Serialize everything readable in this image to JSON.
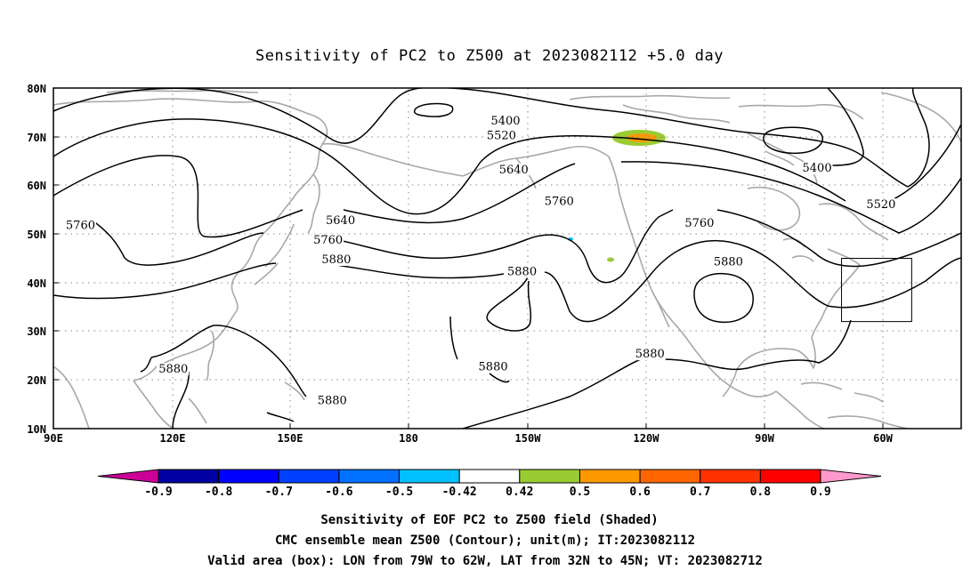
{
  "title": "Sensitivity of PC2 to Z500 at 2023082112 +5.0 day",
  "map": {
    "lat_ticks": [
      "80N",
      "70N",
      "60N",
      "50N",
      "40N",
      "30N",
      "20N",
      "10N"
    ],
    "lon_ticks": [
      "90E",
      "120E",
      "150E",
      "180",
      "150W",
      "120W",
      "90W",
      "60W"
    ],
    "lon_range": [
      90,
      310
    ],
    "lat_range": [
      10,
      80
    ],
    "contour_labels": [
      {
        "text": "5400",
        "lon": 196,
        "lat": 72.5
      },
      {
        "text": "5520",
        "lon": 195,
        "lat": 69.5
      },
      {
        "text": "5400",
        "lon": 271.5,
        "lat": 62.8
      },
      {
        "text": "5520",
        "lon": 287,
        "lat": 55.3
      },
      {
        "text": "5640",
        "lon": 198,
        "lat": 62.5
      },
      {
        "text": "5640",
        "lon": 156,
        "lat": 52.0
      },
      {
        "text": "5760",
        "lon": 93,
        "lat": 51.0
      },
      {
        "text": "5760",
        "lon": 209,
        "lat": 56.0
      },
      {
        "text": "5760",
        "lon": 153,
        "lat": 48.0
      },
      {
        "text": "5760",
        "lon": 243,
        "lat": 51.5
      },
      {
        "text": "5880",
        "lon": 155,
        "lat": 44.0
      },
      {
        "text": "5880",
        "lon": 200,
        "lat": 41.5
      },
      {
        "text": "5880",
        "lon": 250,
        "lat": 43.5
      },
      {
        "text": "5880",
        "lon": 115.5,
        "lat": 21.5
      },
      {
        "text": "5880",
        "lon": 154,
        "lat": 15.0
      },
      {
        "text": "5880",
        "lon": 193,
        "lat": 22.0
      },
      {
        "text": "5880",
        "lon": 231,
        "lat": 24.6
      }
    ],
    "valid_box": {
      "lon_min": 281,
      "lon_max": 298,
      "lat_min": 32,
      "lat_max": 45
    }
  },
  "colorbar": {
    "labels": [
      "-0.9",
      "-0.8",
      "-0.7",
      "-0.6",
      "-0.5",
      "-0.42",
      "0.42",
      "0.5",
      "0.6",
      "0.7",
      "0.8",
      "0.9"
    ],
    "colors": [
      "#0000a0",
      "#0000ff",
      "#0040ff",
      "#0070ff",
      "#00c0ff",
      "#ffffff",
      "#99cc33",
      "#ff9900",
      "#ff6600",
      "#ff3300",
      "#ff0000"
    ],
    "low_color": "#cc0099",
    "high_color": "#ff99cc"
  },
  "captions": [
    "Sensitivity of EOF PC2 to Z500 field (Shaded)",
    "CMC ensemble mean Z500 (Contour); unit(m); IT:2023082112",
    "Valid area (box): LON from 79W to 62W, LAT from 32N to 45N; VT: 2023082712"
  ]
}
